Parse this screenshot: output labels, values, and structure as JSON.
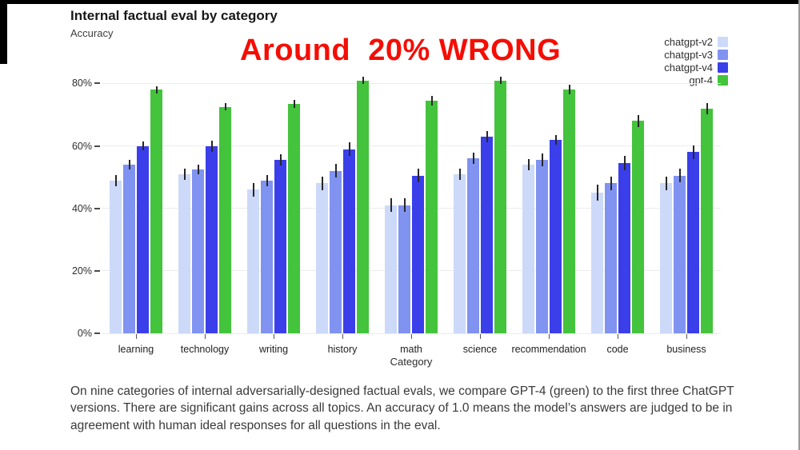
{
  "chart": {
    "title": "Internal factual eval by category",
    "y_axis_title": "Accuracy",
    "x_axis_title": "Category"
  },
  "annotation": {
    "text": "Around  20% WRONG",
    "color": "#f50d04"
  },
  "caption": {
    "text": "On nine categories of internal adversarially-designed factual evals, we compare GPT-4 (green) to the first three ChatGPT versions. There are significant gains across all topics. An accuracy of 1.0 means the model’s answers are judged to be in agreement with human ideal responses for all questions in the eval."
  },
  "chart_data": {
    "type": "bar",
    "title": "Internal factual eval by category",
    "xlabel": "Category",
    "ylabel": "Accuracy",
    "ylim_percent": [
      0,
      86
    ],
    "grid": true,
    "legend_position": "top-right",
    "yticks": [
      {
        "percent": 0,
        "label": "0%"
      },
      {
        "percent": 20,
        "label": "20%"
      },
      {
        "percent": 40,
        "label": "40%"
      },
      {
        "percent": 60,
        "label": "60%"
      },
      {
        "percent": 80,
        "label": "80%"
      }
    ],
    "categories": [
      "learning",
      "technology",
      "writing",
      "history",
      "math",
      "science",
      "recommendation",
      "code",
      "business"
    ],
    "series": [
      {
        "name": "chatgpt-v2",
        "color": "#ccd9f8",
        "values": [
          49,
          51,
          46,
          48,
          41,
          51,
          54,
          45,
          48
        ],
        "errors": [
          1.8,
          1.8,
          2.2,
          2.2,
          2.2,
          1.8,
          1.8,
          2.5,
          2.2
        ]
      },
      {
        "name": "chatgpt-v3",
        "color": "#8093f0",
        "values": [
          54,
          52.5,
          49,
          52,
          41,
          56,
          55.5,
          48,
          50.5
        ],
        "errors": [
          1.5,
          1.5,
          1.8,
          2.2,
          2.2,
          1.8,
          2.0,
          2.2,
          2.2
        ]
      },
      {
        "name": "chatgpt-v4",
        "color": "#3a3fea",
        "values": [
          60,
          60,
          55.5,
          59,
          50.5,
          63,
          62,
          54.5,
          58
        ],
        "errors": [
          1.5,
          1.8,
          1.8,
          2.2,
          2.2,
          1.8,
          1.5,
          2.2,
          2.2
        ]
      },
      {
        "name": "gpt-4",
        "color": "#44c33c",
        "values": [
          78,
          72.5,
          73.5,
          81,
          74.5,
          81,
          78,
          68,
          72
        ],
        "errors": [
          1.2,
          1.2,
          1.2,
          1.2,
          1.5,
          1.2,
          1.5,
          2.0,
          1.8
        ]
      }
    ]
  }
}
